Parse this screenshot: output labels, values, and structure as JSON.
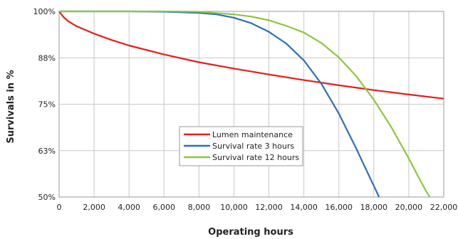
{
  "chart_data": {
    "type": "line",
    "title": "",
    "xlabel": "Operating hours",
    "ylabel": "Survivals in %",
    "xlim": [
      0,
      22000
    ],
    "ylim": [
      50,
      100
    ],
    "x_ticks": [
      0,
      2000,
      4000,
      6000,
      8000,
      10000,
      12000,
      14000,
      16000,
      18000,
      20000,
      22000
    ],
    "x_tick_labels": [
      "0",
      "2,000",
      "4,000",
      "6,000",
      "8,000",
      "10,000",
      "12,000",
      "14,000",
      "16,000",
      "18,000",
      "20,000",
      "22,000"
    ],
    "y_ticks": [
      50,
      62.5,
      75,
      87.5,
      100
    ],
    "y_tick_labels": [
      "50%",
      "63%",
      "75%",
      "88%",
      "100%"
    ],
    "grid": true,
    "legend_position": "center-right",
    "series": [
      {
        "name": "Lumen maintenance",
        "color": "#e0201b",
        "points": [
          [
            0,
            100
          ],
          [
            250,
            98.5
          ],
          [
            500,
            97.4
          ],
          [
            1000,
            96
          ],
          [
            2000,
            94
          ],
          [
            3000,
            92.3
          ],
          [
            4000,
            90.8
          ],
          [
            6000,
            88.4
          ],
          [
            8000,
            86.3
          ],
          [
            10000,
            84.6
          ],
          [
            12000,
            83
          ],
          [
            14000,
            81.5
          ],
          [
            16000,
            80.1
          ],
          [
            18000,
            78.8
          ],
          [
            20000,
            77.6
          ],
          [
            22000,
            76.5
          ]
        ]
      },
      {
        "name": "Survival rate 3 hours",
        "color": "#2e6fb5",
        "points": [
          [
            0,
            100
          ],
          [
            4000,
            100
          ],
          [
            6000,
            99.9
          ],
          [
            8000,
            99.6
          ],
          [
            9000,
            99.2
          ],
          [
            10000,
            98.3
          ],
          [
            11000,
            96.8
          ],
          [
            12000,
            94.5
          ],
          [
            13000,
            91.3
          ],
          [
            14000,
            86.8
          ],
          [
            15000,
            80.5
          ],
          [
            16000,
            72.5
          ],
          [
            17000,
            63
          ],
          [
            17600,
            57
          ],
          [
            18000,
            53
          ],
          [
            18300,
            50
          ]
        ]
      },
      {
        "name": "Survival rate 12 hours",
        "color": "#8cc63e",
        "points": [
          [
            0,
            100
          ],
          [
            6000,
            100
          ],
          [
            8000,
            99.9
          ],
          [
            10000,
            99.2
          ],
          [
            11000,
            98.6
          ],
          [
            12000,
            97.6
          ],
          [
            13000,
            96.1
          ],
          [
            14000,
            94.3
          ],
          [
            15000,
            91.5
          ],
          [
            16000,
            87.6
          ],
          [
            17000,
            82.5
          ],
          [
            18000,
            76.2
          ],
          [
            19000,
            68.8
          ],
          [
            20000,
            60.4
          ],
          [
            20600,
            55
          ],
          [
            21000,
            51.5
          ],
          [
            21200,
            50
          ]
        ]
      }
    ]
  }
}
